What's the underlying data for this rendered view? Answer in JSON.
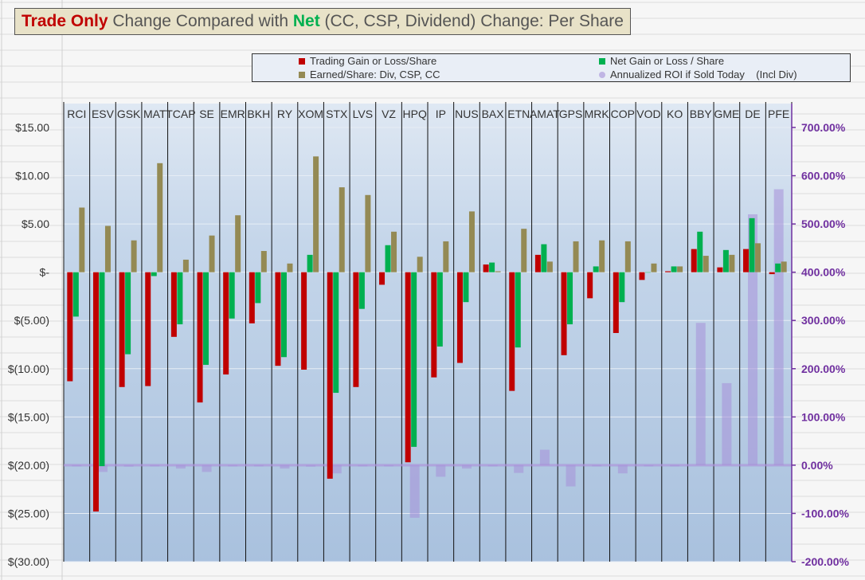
{
  "title": {
    "part1": "Trade Only",
    "part2": " Change Compared with ",
    "part3": "Net",
    "part4": " (CC, CSP, Dividend) Change: Per Share"
  },
  "colors": {
    "trading": "#c00000",
    "net": "#00b050",
    "earned": "#948a54",
    "roi": "#a58fd8",
    "axis_right": "#7030a0",
    "plot_bg": "#b8cce4"
  },
  "legend": {
    "trading": "Trading Gain or Loss/Share",
    "net": "Net Gain or Loss / Share",
    "earned": "Earned/Share: Div, CSP, CC",
    "roi": "Annualized ROI if Sold Today    (Incl Div)"
  },
  "chart_data": {
    "type": "bar",
    "categories": [
      "RCI",
      "ESV",
      "GSK",
      "MAT",
      "TCAP",
      "SE",
      "EMR",
      "BKH",
      "RY",
      "XOM",
      "STX",
      "LVS",
      "VZ",
      "HPQ",
      "IP",
      "NUS",
      "BAX",
      "ETN",
      "AMAT",
      "GPS",
      "MRK",
      "COP",
      "VOD",
      "KO",
      "BBY",
      "GME",
      "DE",
      "PFE"
    ],
    "series": [
      {
        "name": "Trading Gain or Loss/Share",
        "axis": "left",
        "values": [
          -11.3,
          -24.8,
          -11.9,
          -11.8,
          -6.7,
          -13.5,
          -10.6,
          -5.3,
          -9.7,
          -10.1,
          -21.4,
          -11.9,
          -1.3,
          -19.7,
          -10.9,
          -9.4,
          0.8,
          -12.3,
          1.8,
          -8.6,
          -2.7,
          -6.3,
          -0.8,
          0.1,
          2.4,
          0.5,
          2.4,
          -0.2
        ]
      },
      {
        "name": "Net Gain or Loss / Share",
        "axis": "left",
        "values": [
          -4.6,
          -20.1,
          -8.5,
          -0.4,
          -5.4,
          -9.6,
          -4.8,
          -3.2,
          -8.8,
          1.8,
          -12.5,
          -3.8,
          2.8,
          -18.1,
          -7.7,
          -3.1,
          1.0,
          -7.8,
          2.9,
          -5.4,
          0.6,
          -3.1,
          0.0,
          0.6,
          4.2,
          2.3,
          5.6,
          0.9
        ]
      },
      {
        "name": "Earned/Share: Div, CSP, CC",
        "axis": "left",
        "values": [
          6.7,
          4.8,
          3.3,
          11.3,
          1.3,
          3.8,
          5.9,
          2.2,
          0.9,
          12.0,
          8.8,
          8.0,
          4.2,
          1.6,
          3.2,
          6.3,
          0.1,
          4.5,
          1.1,
          3.2,
          3.3,
          3.2,
          0.9,
          0.6,
          1.7,
          1.8,
          3.0,
          1.1
        ]
      },
      {
        "name": "Annualized ROI if Sold Today    (Incl Div)",
        "axis": "right",
        "values": [
          -2,
          -14,
          -3,
          -2,
          -7,
          -14,
          -2,
          -2,
          -7,
          -3,
          -17,
          -2,
          -2,
          -109,
          -24,
          -7,
          -2,
          -16,
          32,
          -44,
          -2,
          -17,
          -2,
          -2,
          295,
          170,
          520,
          572
        ]
      }
    ],
    "ylim_left": [
      -30,
      15
    ],
    "ylim_right": [
      -200,
      700
    ],
    "yticks_left": [
      "$15.00",
      "$10.00",
      "$5.00",
      "$-",
      "$(5.00)",
      "$(10.00)",
      "$(15.00)",
      "$(20.00)",
      "$(25.00)",
      "$(30.00)"
    ],
    "yticks_right": [
      "700.00%",
      "600.00%",
      "500.00%",
      "400.00%",
      "300.00%",
      "200.00%",
      "100.00%",
      "0.00%",
      "-100.00%",
      "-200.00%"
    ],
    "grid": true,
    "legend_position": "top"
  }
}
